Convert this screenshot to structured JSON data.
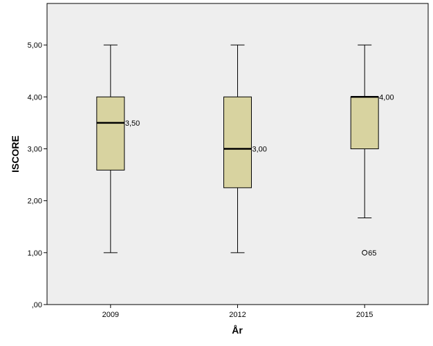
{
  "chart_data": {
    "type": "boxplot",
    "xlabel": "År",
    "ylabel": "ISCORE",
    "ylim": [
      0,
      5.8
    ],
    "yticks": [
      0,
      1,
      2,
      3,
      4,
      5
    ],
    "ytick_labels": [
      ",00",
      "1,00",
      "2,00",
      "3,00",
      "4,00",
      "5,00"
    ],
    "grid": false,
    "plot_background": "#eeeeee",
    "box_color": "#d8d3a0",
    "categories": [
      "2009",
      "2012",
      "2015"
    ],
    "boxes": [
      {
        "category": "2009",
        "min": 1.0,
        "q1": 2.59,
        "median": 3.5,
        "q3": 4.0,
        "max": 5.0,
        "median_label": "3,50",
        "outliers": []
      },
      {
        "category": "2012",
        "min": 1.0,
        "q1": 2.25,
        "median": 3.0,
        "q3": 4.0,
        "max": 5.0,
        "median_label": "3,00",
        "outliers": []
      },
      {
        "category": "2015",
        "min": 1.67,
        "q1": 3.0,
        "median": 4.0,
        "q3": 4.0,
        "max": 5.0,
        "median_label": "4,00",
        "outliers": [
          {
            "value": 1.0,
            "label": "65"
          }
        ]
      }
    ]
  }
}
